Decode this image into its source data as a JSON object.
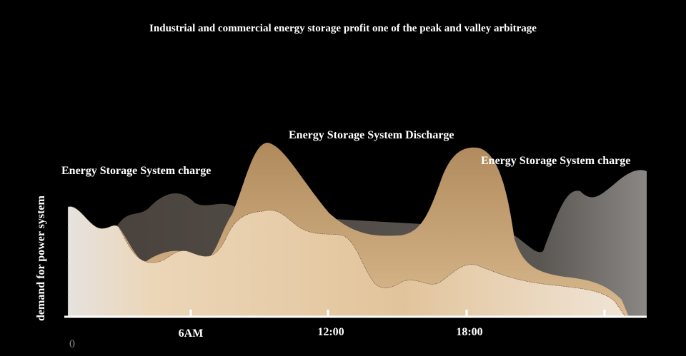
{
  "title": "Industrial and commercial energy storage profit one of the peak and valley arbitrage",
  "y_label": "demand for power system",
  "annotations": [
    "Energy Storage System charge",
    "Energy Storage System Discharge",
    "Energy Storage System charge"
  ],
  "x_labels": [
    "0",
    "6AM",
    "12:00",
    "18:00"
  ]
}
